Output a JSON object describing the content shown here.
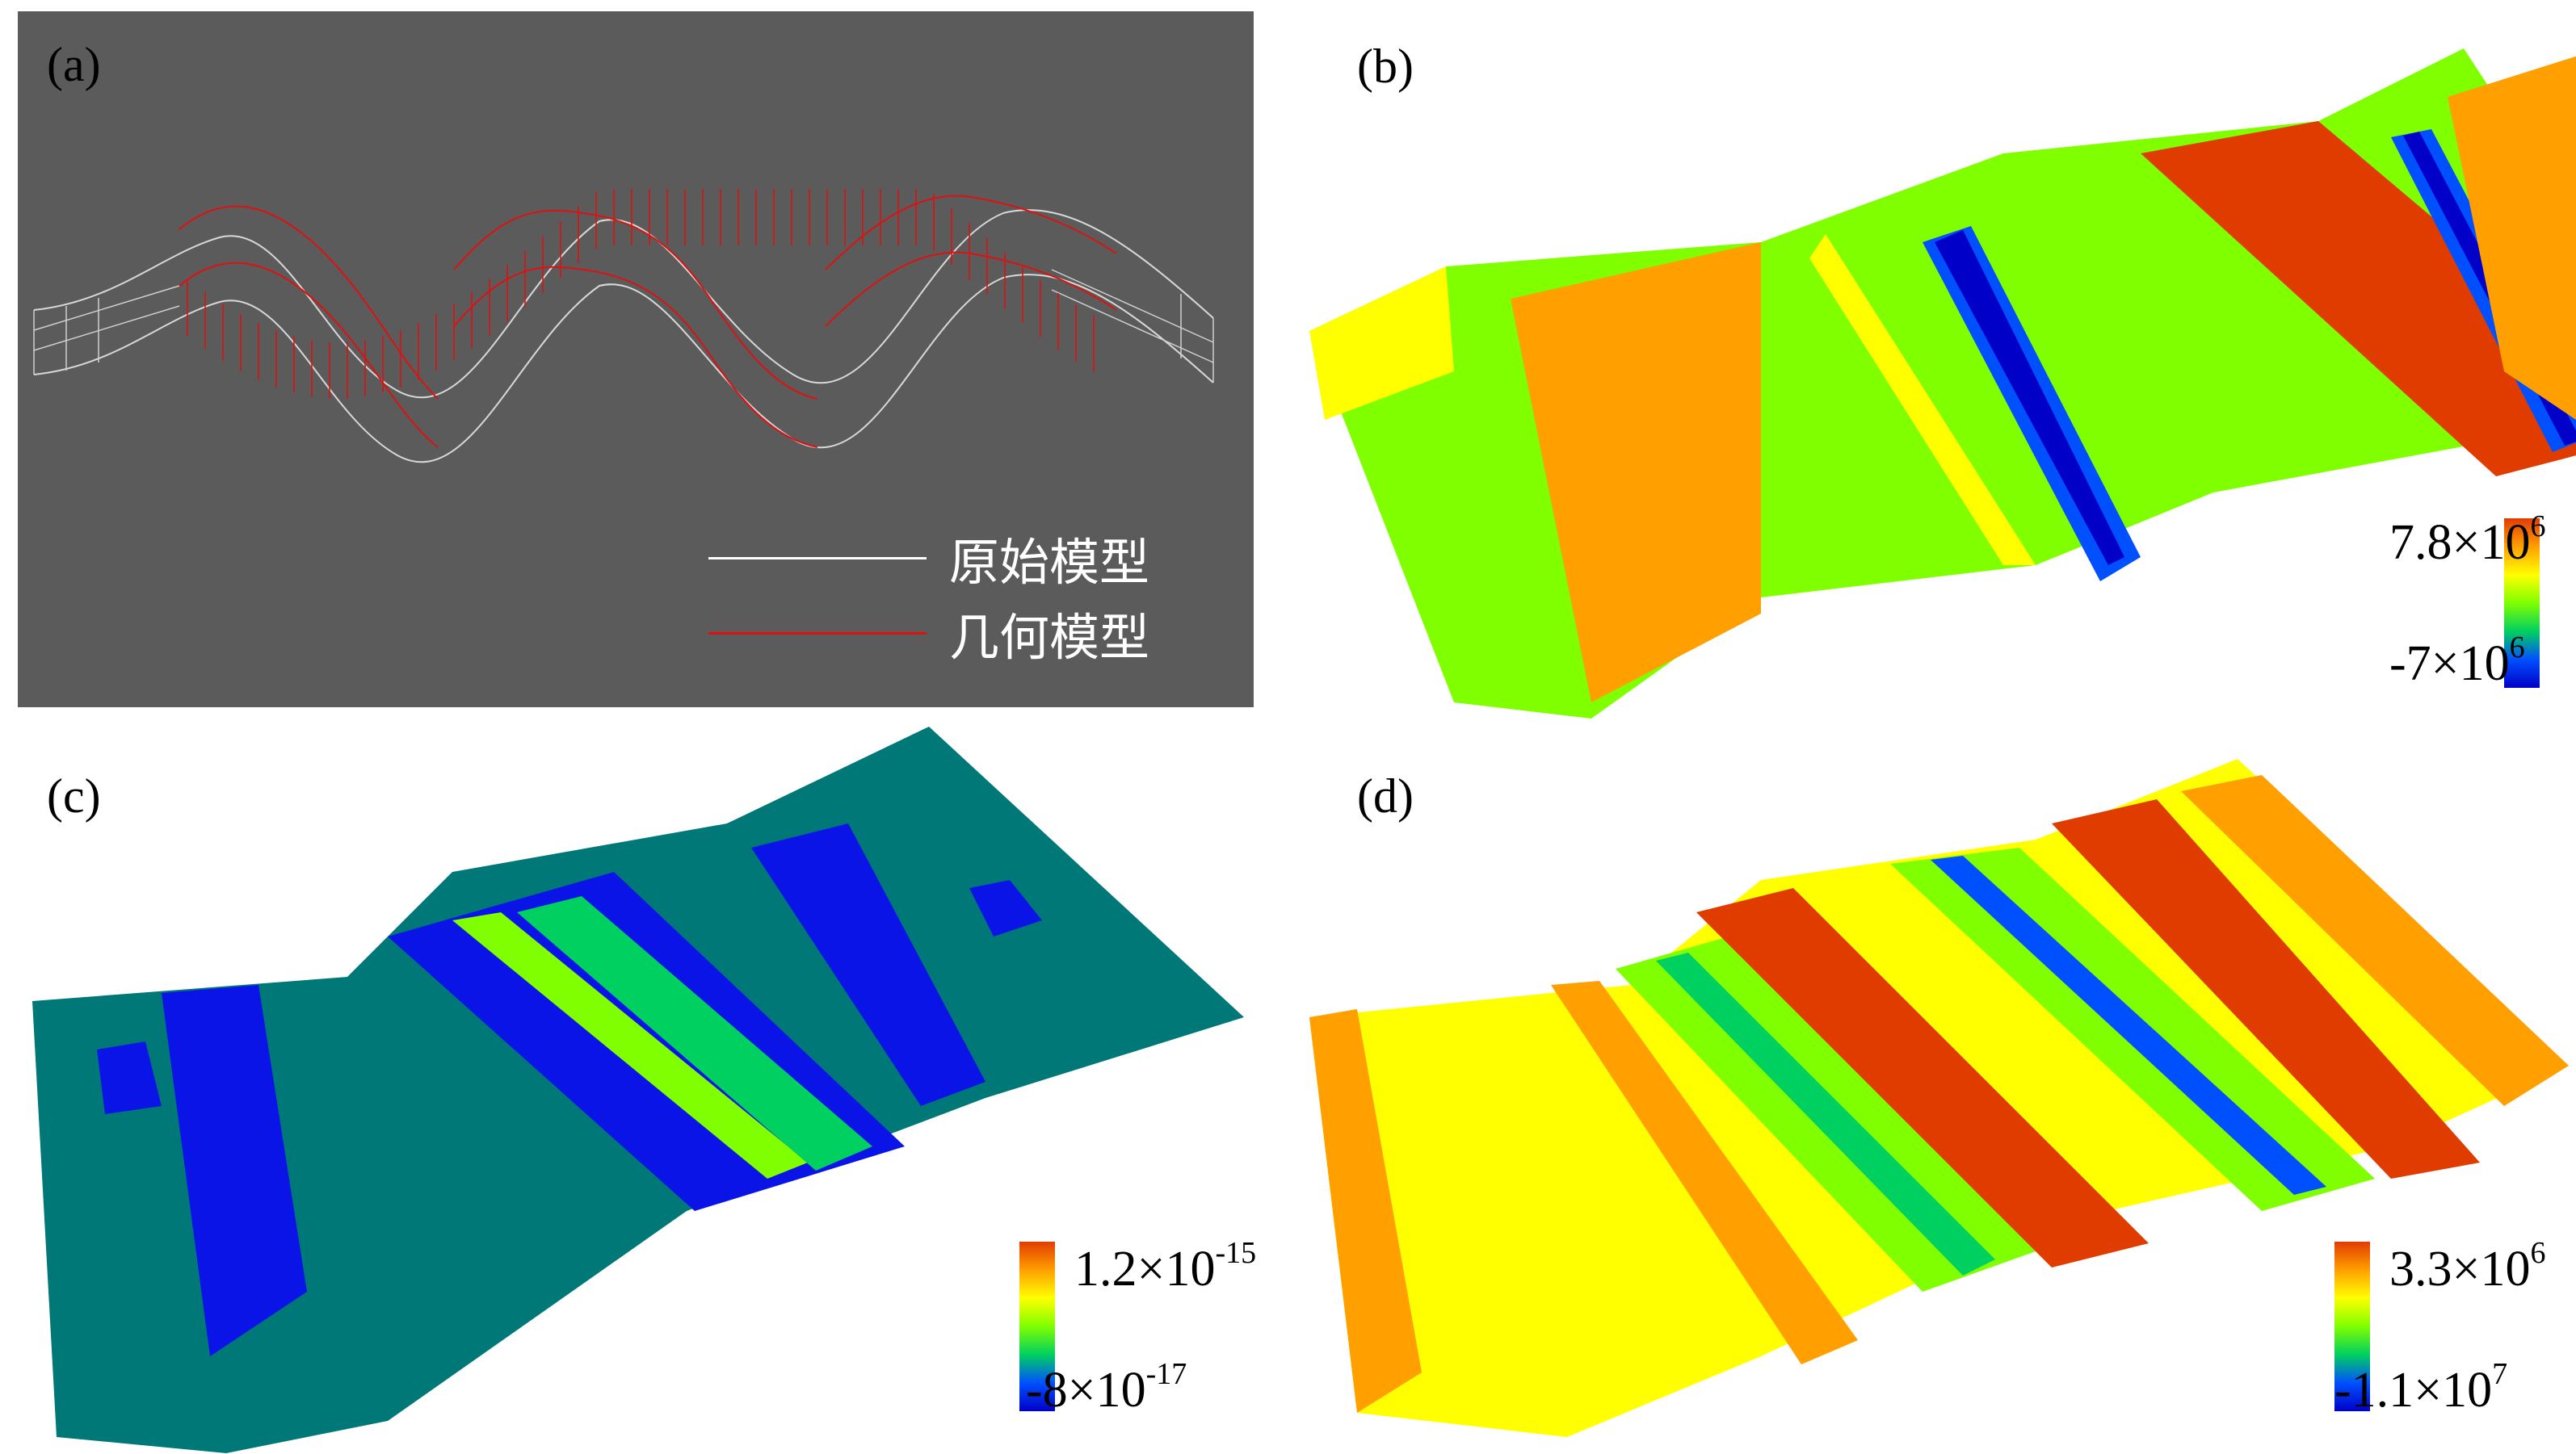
{
  "panels": {
    "a": {
      "label": "(a)",
      "legend": [
        {
          "text": "原始模型",
          "color": "#ffffff"
        },
        {
          "text": "几何模型",
          "color": "#e01010"
        }
      ]
    },
    "b": {
      "label": "(b)",
      "scale": {
        "max_value": "7.8×10",
        "max_exp": "6",
        "min_value": "-7×10",
        "min_exp": "6"
      }
    },
    "c": {
      "label": "(c)",
      "scale": {
        "max_value": "1.2×10",
        "max_exp": "-15",
        "min_value": "-8×10",
        "min_exp": "-17"
      }
    },
    "d": {
      "label": "(d)",
      "scale": {
        "max_value": "3.3×10",
        "max_exp": "6",
        "min_value": "-1.1×10",
        "min_exp": "7"
      }
    }
  },
  "colors": {
    "background_a": "#5b5b5b",
    "colorbar": [
      "#e03c00",
      "#ff9f00",
      "#ffff00",
      "#7fff00",
      "#00d060",
      "#0050ff",
      "#0000c8"
    ],
    "c_teal": "#007878",
    "c_blue": "#0a14e6"
  }
}
